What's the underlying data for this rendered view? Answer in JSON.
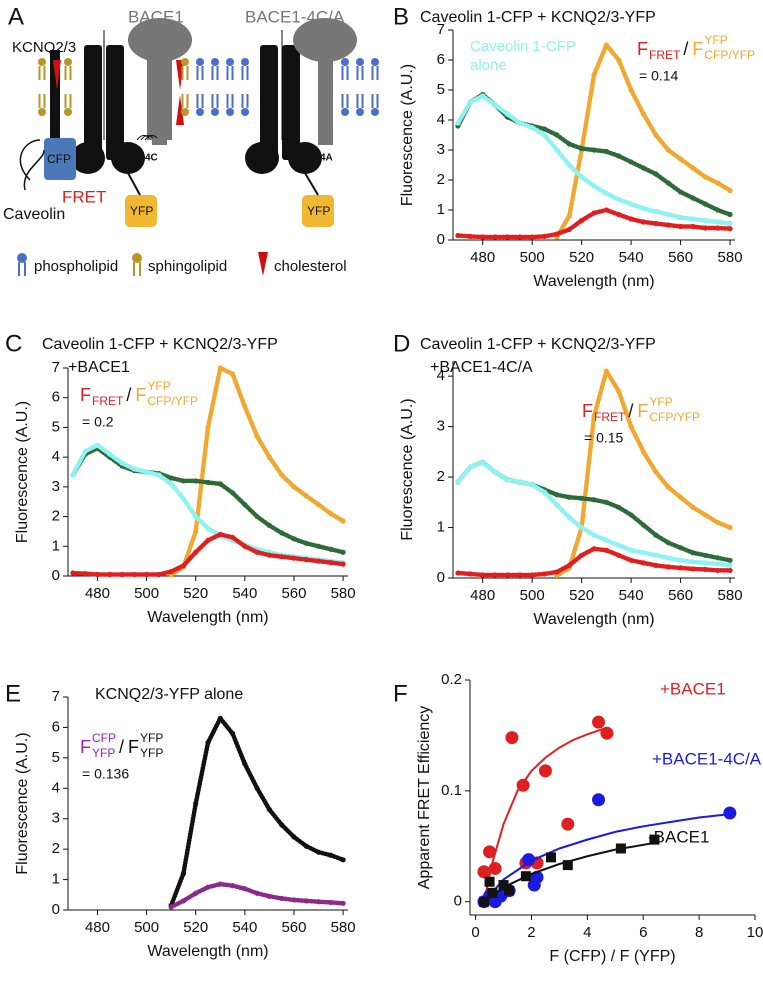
{
  "panel_labels": [
    "A",
    "B",
    "C",
    "D",
    "E",
    "F"
  ],
  "panel_a": {
    "channel": "KCNQ2/3",
    "bace1": "BACE1",
    "bace1_mutant": "BACE1-4C/A",
    "donor": "CFP",
    "fret": "FRET",
    "acceptor_left": "YFP",
    "acceptor_right": "YFP",
    "caveolin": "Caveolin",
    "site_wt": "4C",
    "site_mutant": "4A",
    "legend": [
      "phospholipid",
      "sphingolipid",
      "cholesterol"
    ]
  },
  "chart_data": [
    {
      "type": "scatter",
      "title": "Caveolin 1-CFP + KCNQ2/3-YFP",
      "x_label": "Wavelength (nm)",
      "y_label": "Fluorescence (A.U.)",
      "x": [
        470,
        475,
        480,
        485,
        490,
        495,
        500,
        505,
        510,
        515,
        520,
        525,
        530,
        535,
        540,
        545,
        550,
        555,
        560,
        565,
        570,
        575,
        580
      ],
      "xlim": [
        468,
        582
      ],
      "xticks": [
        480,
        500,
        520,
        540,
        560,
        580
      ],
      "ylim": [
        0,
        7
      ],
      "yticks": [
        0,
        1,
        2,
        3,
        4,
        5,
        6,
        7
      ],
      "series": [
        {
          "color": "#f0a830",
          "values": [
            null,
            null,
            null,
            null,
            null,
            null,
            null,
            null,
            0.1,
            0.8,
            3.0,
            5.5,
            6.5,
            6.0,
            5.0,
            4.2,
            3.5,
            3.0,
            2.7,
            2.4,
            2.1,
            1.9,
            1.65
          ]
        },
        {
          "color": "#2f6b3a",
          "values": [
            3.8,
            4.6,
            4.85,
            4.5,
            4.1,
            3.9,
            3.8,
            3.7,
            3.5,
            3.2,
            3.05,
            3.0,
            2.95,
            2.8,
            2.6,
            2.4,
            2.2,
            1.9,
            1.6,
            1.4,
            1.2,
            1.0,
            0.85
          ]
        },
        {
          "color": "#8ef2f2",
          "values": [
            3.9,
            4.6,
            4.8,
            4.5,
            4.2,
            3.9,
            3.75,
            3.5,
            3.0,
            2.5,
            2.1,
            1.8,
            1.55,
            1.35,
            1.2,
            1.05,
            0.95,
            0.85,
            0.75,
            0.7,
            0.65,
            0.6,
            0.55
          ]
        },
        {
          "color": "#e02020",
          "values": [
            0.15,
            0.12,
            0.1,
            0.1,
            0.1,
            0.1,
            0.1,
            0.12,
            0.2,
            0.35,
            0.65,
            0.9,
            1.0,
            0.85,
            0.7,
            0.6,
            0.55,
            0.5,
            0.45,
            0.45,
            0.4,
            0.4,
            0.38
          ]
        }
      ],
      "annotations": [
        {
          "text": "Caveolin 1-CFP",
          "color": "#8ef2f2"
        },
        {
          "text": "alone",
          "color": "#8ef2f2"
        }
      ],
      "ratio": {
        "parts": [
          {
            "text": "F",
            "pos": "base",
            "color": "#e02020"
          },
          {
            "text": "FRET",
            "pos": "sub",
            "color": "#e02020"
          },
          {
            "text": "/",
            "pos": "base",
            "color": "#111111"
          },
          {
            "text": "F",
            "pos": "base",
            "color": "#f0a830"
          },
          {
            "text": "CFP/YFP",
            "pos": "sub",
            "color": "#f0a830"
          },
          {
            "text": "YFP",
            "pos": "sup",
            "color": "#f0a830"
          }
        ],
        "result": "= 0.14"
      }
    },
    {
      "type": "scatter",
      "title": "Caveolin 1-CFP + KCNQ2/3-YFP",
      "subtitle": "+BACE1",
      "x_label": "Wavelength (nm)",
      "y_label": "Fluorescence (A.U.)",
      "x": [
        470,
        475,
        480,
        485,
        490,
        495,
        500,
        505,
        510,
        515,
        520,
        525,
        530,
        535,
        540,
        545,
        550,
        555,
        560,
        565,
        570,
        575,
        580
      ],
      "xlim": [
        468,
        582
      ],
      "xticks": [
        480,
        500,
        520,
        540,
        560,
        580
      ],
      "ylim": [
        0,
        7
      ],
      "yticks": [
        0,
        1,
        2,
        3,
        4,
        5,
        6,
        7
      ],
      "series": [
        {
          "color": "#f0a830",
          "values": [
            null,
            null,
            null,
            null,
            null,
            null,
            null,
            null,
            0.05,
            0.3,
            1.5,
            5.0,
            7.0,
            6.8,
            5.7,
            4.7,
            4.0,
            3.4,
            3.0,
            2.7,
            2.4,
            2.1,
            1.85
          ]
        },
        {
          "color": "#2f6b3a",
          "values": [
            3.4,
            4.1,
            4.3,
            4.0,
            3.7,
            3.55,
            3.5,
            3.45,
            3.3,
            3.2,
            3.2,
            3.15,
            3.1,
            2.8,
            2.4,
            2.0,
            1.7,
            1.45,
            1.25,
            1.1,
            1.0,
            0.9,
            0.8
          ]
        },
        {
          "color": "#8ef2f2",
          "values": [
            3.4,
            4.2,
            4.4,
            4.1,
            3.8,
            3.6,
            3.5,
            3.4,
            3.1,
            2.6,
            2.0,
            1.6,
            1.35,
            1.2,
            1.05,
            0.9,
            0.8,
            0.7,
            0.65,
            0.6,
            0.55,
            0.5,
            0.45
          ]
        },
        {
          "color": "#e02020",
          "values": [
            0.1,
            0.08,
            0.05,
            0.05,
            0.05,
            0.05,
            0.05,
            0.05,
            0.15,
            0.35,
            0.8,
            1.2,
            1.4,
            1.3,
            1.0,
            0.8,
            0.7,
            0.65,
            0.6,
            0.55,
            0.5,
            0.45,
            0.4
          ]
        }
      ],
      "ratio": {
        "parts": [
          {
            "text": "F",
            "pos": "base",
            "color": "#e02020"
          },
          {
            "text": "FRET",
            "pos": "sub",
            "color": "#e02020"
          },
          {
            "text": "/",
            "pos": "base",
            "color": "#111111"
          },
          {
            "text": "F",
            "pos": "base",
            "color": "#f0a830"
          },
          {
            "text": "CFP/YFP",
            "pos": "sub",
            "color": "#f0a830"
          },
          {
            "text": "YFP",
            "pos": "sup",
            "color": "#f0a830"
          }
        ],
        "result": "= 0.2"
      }
    },
    {
      "type": "scatter",
      "title": "Caveolin 1-CFP + KCNQ2/3-YFP",
      "subtitle": "+BACE1-4C/A",
      "x_label": "Wavelength (nm)",
      "y_label": "Fluorescence (A.U.)",
      "x": [
        470,
        475,
        480,
        485,
        490,
        495,
        500,
        505,
        510,
        515,
        520,
        525,
        530,
        535,
        540,
        545,
        550,
        555,
        560,
        565,
        570,
        575,
        580
      ],
      "xlim": [
        468,
        582
      ],
      "xticks": [
        480,
        500,
        520,
        540,
        560,
        580
      ],
      "ylim": [
        0,
        4.3
      ],
      "yticks": [
        0,
        1,
        2,
        3,
        4
      ],
      "series": [
        {
          "color": "#f0a830",
          "values": [
            null,
            null,
            null,
            null,
            null,
            null,
            null,
            null,
            0.05,
            0.2,
            1.0,
            3.2,
            4.1,
            3.7,
            3.0,
            2.5,
            2.1,
            1.8,
            1.6,
            1.4,
            1.25,
            1.1,
            1.0
          ]
        },
        {
          "color": "#2f6b3a",
          "values": [
            1.9,
            2.2,
            2.3,
            2.1,
            1.95,
            1.9,
            1.85,
            1.75,
            1.65,
            1.6,
            1.58,
            1.55,
            1.5,
            1.4,
            1.25,
            1.05,
            0.85,
            0.7,
            0.6,
            0.5,
            0.45,
            0.4,
            0.35
          ]
        },
        {
          "color": "#8ef2f2",
          "values": [
            1.9,
            2.2,
            2.3,
            2.1,
            1.95,
            1.9,
            1.85,
            1.7,
            1.45,
            1.2,
            1.0,
            0.85,
            0.75,
            0.65,
            0.55,
            0.5,
            0.45,
            0.4,
            0.35,
            0.32,
            0.3,
            0.28,
            0.25
          ]
        },
        {
          "color": "#e02020",
          "values": [
            0.1,
            0.08,
            0.06,
            0.06,
            0.06,
            0.06,
            0.06,
            0.08,
            0.12,
            0.25,
            0.45,
            0.58,
            0.55,
            0.45,
            0.35,
            0.3,
            0.25,
            0.22,
            0.2,
            0.18,
            0.17,
            0.15,
            0.15
          ]
        }
      ],
      "ratio": {
        "parts": [
          {
            "text": "F",
            "pos": "base",
            "color": "#e02020"
          },
          {
            "text": "FRET",
            "pos": "sub",
            "color": "#e02020"
          },
          {
            "text": "/",
            "pos": "base",
            "color": "#111111"
          },
          {
            "text": "F",
            "pos": "base",
            "color": "#f0a830"
          },
          {
            "text": "CFP/YFP",
            "pos": "sub",
            "color": "#f0a830"
          },
          {
            "text": "YFP",
            "pos": "sup",
            "color": "#f0a830"
          }
        ],
        "result": "= 0.15"
      }
    },
    {
      "type": "scatter",
      "title": "KCNQ2/3-YFP alone",
      "x_label": "Wavelength (nm)",
      "y_label": "Fluorescence (A.U.)",
      "x": [
        470,
        475,
        480,
        485,
        490,
        495,
        500,
        505,
        510,
        515,
        520,
        525,
        530,
        535,
        540,
        545,
        550,
        555,
        560,
        565,
        570,
        575,
        580
      ],
      "xlim": [
        468,
        582
      ],
      "xticks": [
        480,
        500,
        520,
        540,
        560,
        580
      ],
      "ylim": [
        0,
        7
      ],
      "yticks": [
        0,
        1,
        2,
        3,
        4,
        5,
        6,
        7
      ],
      "series": [
        {
          "color": "#111111",
          "values": [
            null,
            null,
            null,
            null,
            null,
            null,
            null,
            null,
            0.15,
            1.2,
            3.5,
            5.5,
            6.3,
            5.8,
            4.8,
            4.0,
            3.3,
            2.8,
            2.4,
            2.1,
            1.9,
            1.8,
            1.65
          ]
        },
        {
          "color": "#8a2a8a",
          "values": [
            null,
            null,
            null,
            null,
            null,
            null,
            null,
            null,
            0.1,
            0.3,
            0.55,
            0.75,
            0.85,
            0.8,
            0.7,
            0.55,
            0.45,
            0.38,
            0.33,
            0.3,
            0.27,
            0.25,
            0.22
          ]
        }
      ],
      "ratio": {
        "parts": [
          {
            "text": "F",
            "pos": "base",
            "color": "#a020c0"
          },
          {
            "text": "YFP",
            "pos": "sub",
            "color": "#a020c0"
          },
          {
            "text": "CFP",
            "pos": "sup",
            "color": "#a020c0"
          },
          {
            "text": "/",
            "pos": "base",
            "color": "#111111"
          },
          {
            "text": "F",
            "pos": "base",
            "color": "#111111"
          },
          {
            "text": "YFP",
            "pos": "sub",
            "color": "#111111"
          },
          {
            "text": "YFP",
            "pos": "sup",
            "color": "#111111"
          }
        ],
        "result": "= 0.136"
      }
    },
    {
      "type": "scatter",
      "x_label": "F (CFP) / F (YFP)",
      "y_label": "Apparent FRET Efficiency",
      "xlim": [
        -0.2,
        10
      ],
      "xticks": [
        0,
        2,
        4,
        6,
        8,
        10
      ],
      "ylim": [
        -0.012,
        0.2
      ],
      "yticks": [
        0,
        0.1,
        0.2
      ],
      "series": [
        {
          "name": "+BACE1",
          "color": "#e02020",
          "marker": "circle",
          "x": [
            0.3,
            0.5,
            0.7,
            1.3,
            1.7,
            1.8,
            2.2,
            2.5,
            3.3,
            4.4,
            4.7
          ],
          "values": [
            0.027,
            0.045,
            0.03,
            0.148,
            0.105,
            0.035,
            0.035,
            0.118,
            0.07,
            0.162,
            0.152
          ],
          "fit": {
            "x": [
              0.3,
              0.6,
              1,
              1.5,
              2,
              2.5,
              3,
              3.5,
              4,
              4.7
            ],
            "y": [
              0,
              0.035,
              0.07,
              0.1,
              0.118,
              0.13,
              0.139,
              0.146,
              0.151,
              0.157
            ]
          }
        },
        {
          "name": "+BACE1-4C/A",
          "color": "#1a1ae0",
          "marker": "circle",
          "x": [
            0.3,
            0.5,
            0.7,
            0.9,
            1.2,
            1.9,
            2.1,
            2.2,
            4.4,
            9.1
          ],
          "values": [
            0,
            0.005,
            0,
            0.005,
            0.01,
            0.038,
            0.015,
            0.022,
            0.092,
            0.08
          ],
          "fit": {
            "x": [
              0.3,
              1,
              2,
              3,
              4,
              5,
              6,
              7,
              8,
              9.1
            ],
            "y": [
              0,
              0.02,
              0.037,
              0.048,
              0.056,
              0.063,
              0.068,
              0.072,
              0.076,
              0.079
            ]
          }
        },
        {
          "name": "-BACE1",
          "color": "#111111",
          "marker": "square",
          "x": [
            0.3,
            0.5,
            0.6,
            1.0,
            1.2,
            1.8,
            2.7,
            3.3,
            5.2,
            6.4
          ],
          "values": [
            0,
            0.018,
            0.008,
            0.015,
            0.01,
            0.023,
            0.04,
            0.033,
            0.048,
            0.056
          ],
          "fit": {
            "x": [
              0.3,
              1,
              2,
              3,
              4,
              5,
              6.4
            ],
            "y": [
              0,
              0.013,
              0.025,
              0.034,
              0.041,
              0.047,
              0.053
            ]
          }
        }
      ]
    }
  ]
}
